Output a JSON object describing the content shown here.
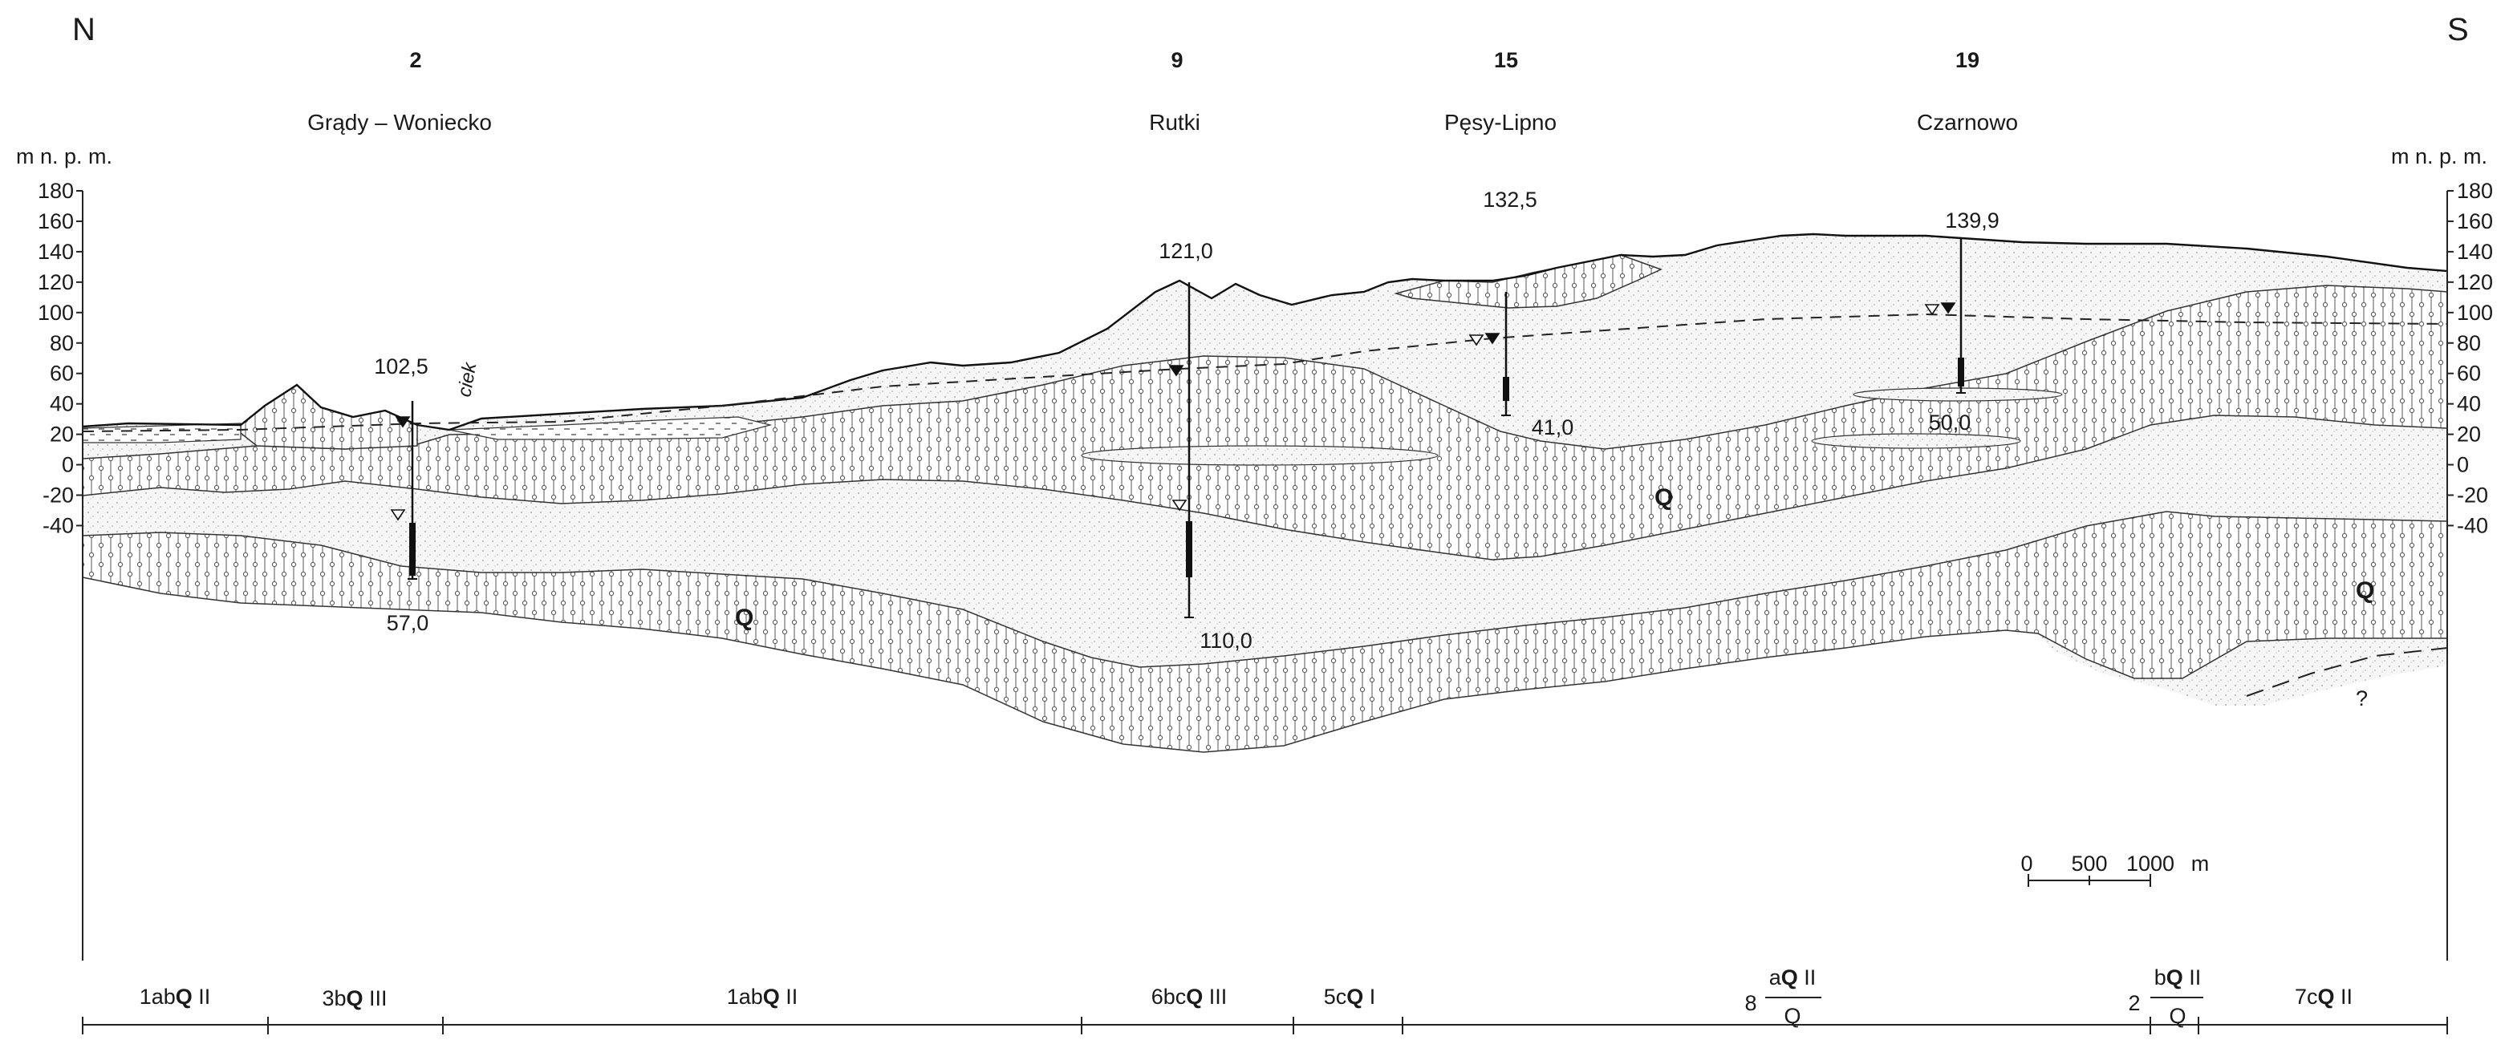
{
  "directions": {
    "north": "N",
    "south": "S"
  },
  "axis": {
    "unit": "m n. p. m.",
    "ticks": [
      {
        "v": 180,
        "label": "180"
      },
      {
        "v": 160,
        "label": "160"
      },
      {
        "v": 140,
        "label": "140"
      },
      {
        "v": 120,
        "label": "120"
      },
      {
        "v": 100,
        "label": "100"
      },
      {
        "v": 80,
        "label": "80"
      },
      {
        "v": 60,
        "label": "60"
      },
      {
        "v": 40,
        "label": "40"
      },
      {
        "v": 20,
        "label": "20"
      },
      {
        "v": 0,
        "label": "0"
      },
      {
        "v": -20,
        "label": "-20"
      },
      {
        "v": -40,
        "label": "-40"
      }
    ]
  },
  "boreholes": [
    {
      "number": "2",
      "locality": "Grądy – Woniecko",
      "top": "102,5",
      "bottom": "57,0"
    },
    {
      "number": "9",
      "locality": "Rutki",
      "top": "121,0",
      "bottom": "110,0"
    },
    {
      "number": "15",
      "locality": "Pęsy-Lipno",
      "top": "132,5",
      "bottom": "41,0"
    },
    {
      "number": "19",
      "locality": "Czarnowo",
      "top": "139,9",
      "bottom": "50,0"
    }
  ],
  "annotations": {
    "stream": "ciek",
    "unknown": "?",
    "aquifer_symbol": "Q"
  },
  "scale_bar": {
    "labels": [
      "0",
      "500",
      "1000"
    ],
    "unit": "m"
  },
  "zones": [
    {
      "pre": "1ab",
      "q": "Q",
      "suf": " II"
    },
    {
      "pre": "3b",
      "q": "Q",
      "suf": " III"
    },
    {
      "pre": "1ab",
      "q": "Q",
      "suf": " II"
    },
    {
      "pre": "6bc",
      "q": "Q",
      "suf": " III"
    },
    {
      "pre": "5c",
      "q": "Q",
      "suf": " I"
    },
    {
      "pre": "8",
      "num_a": "a",
      "num_q": "Q",
      "num_suf": " II",
      "den": "Q"
    },
    {
      "pre": "2",
      "num_a": "b",
      "num_q": "Q",
      "num_suf": " II",
      "den": "Q"
    },
    {
      "pre": "7c",
      "q": "Q",
      "suf": " II"
    }
  ]
}
